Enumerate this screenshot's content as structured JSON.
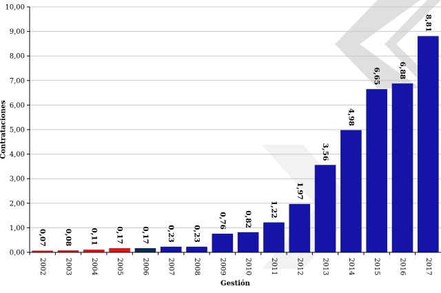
{
  "chart_data": {
    "type": "bar",
    "title": "",
    "xlabel": "Gestión",
    "ylabel": "Contrataciones",
    "ylim": [
      0,
      10
    ],
    "yticks": [
      "0,00",
      "1,00",
      "2,00",
      "3,00",
      "4,00",
      "5,00",
      "6,00",
      "7,00",
      "8,00",
      "9,00",
      "10,00"
    ],
    "grid": true,
    "categories": [
      "2002",
      "2003",
      "2004",
      "2005",
      "2006",
      "2007",
      "2008",
      "2009",
      "2010",
      "2011",
      "2012",
      "2013",
      "2014",
      "2015",
      "2016",
      "2017"
    ],
    "values": [
      0.07,
      0.08,
      0.11,
      0.17,
      0.17,
      0.23,
      0.23,
      0.76,
      0.82,
      1.22,
      1.97,
      3.56,
      4.98,
      6.65,
      6.88,
      8.81
    ],
    "value_labels": [
      "0,07",
      "0,08",
      "0,11",
      "0,17",
      "0,17",
      "0,23",
      "0,23",
      "0,76",
      "0,82",
      "1,22",
      "1,97",
      "3,56",
      "4,98",
      "6,65",
      "6,88",
      "8,81"
    ],
    "bar_colors": [
      "#e0161b",
      "#e0161b",
      "#e0161b",
      "#e0161b",
      "#0d2a55",
      "#1414a8",
      "#1414a8",
      "#1414a8",
      "#1414a8",
      "#1414a8",
      "#1414a8",
      "#1414a8",
      "#1414a8",
      "#1414a8",
      "#1414a8",
      "#1414a8"
    ],
    "watermark_color": "#d9d9d9",
    "grid_color": "#c8c8c8"
  }
}
